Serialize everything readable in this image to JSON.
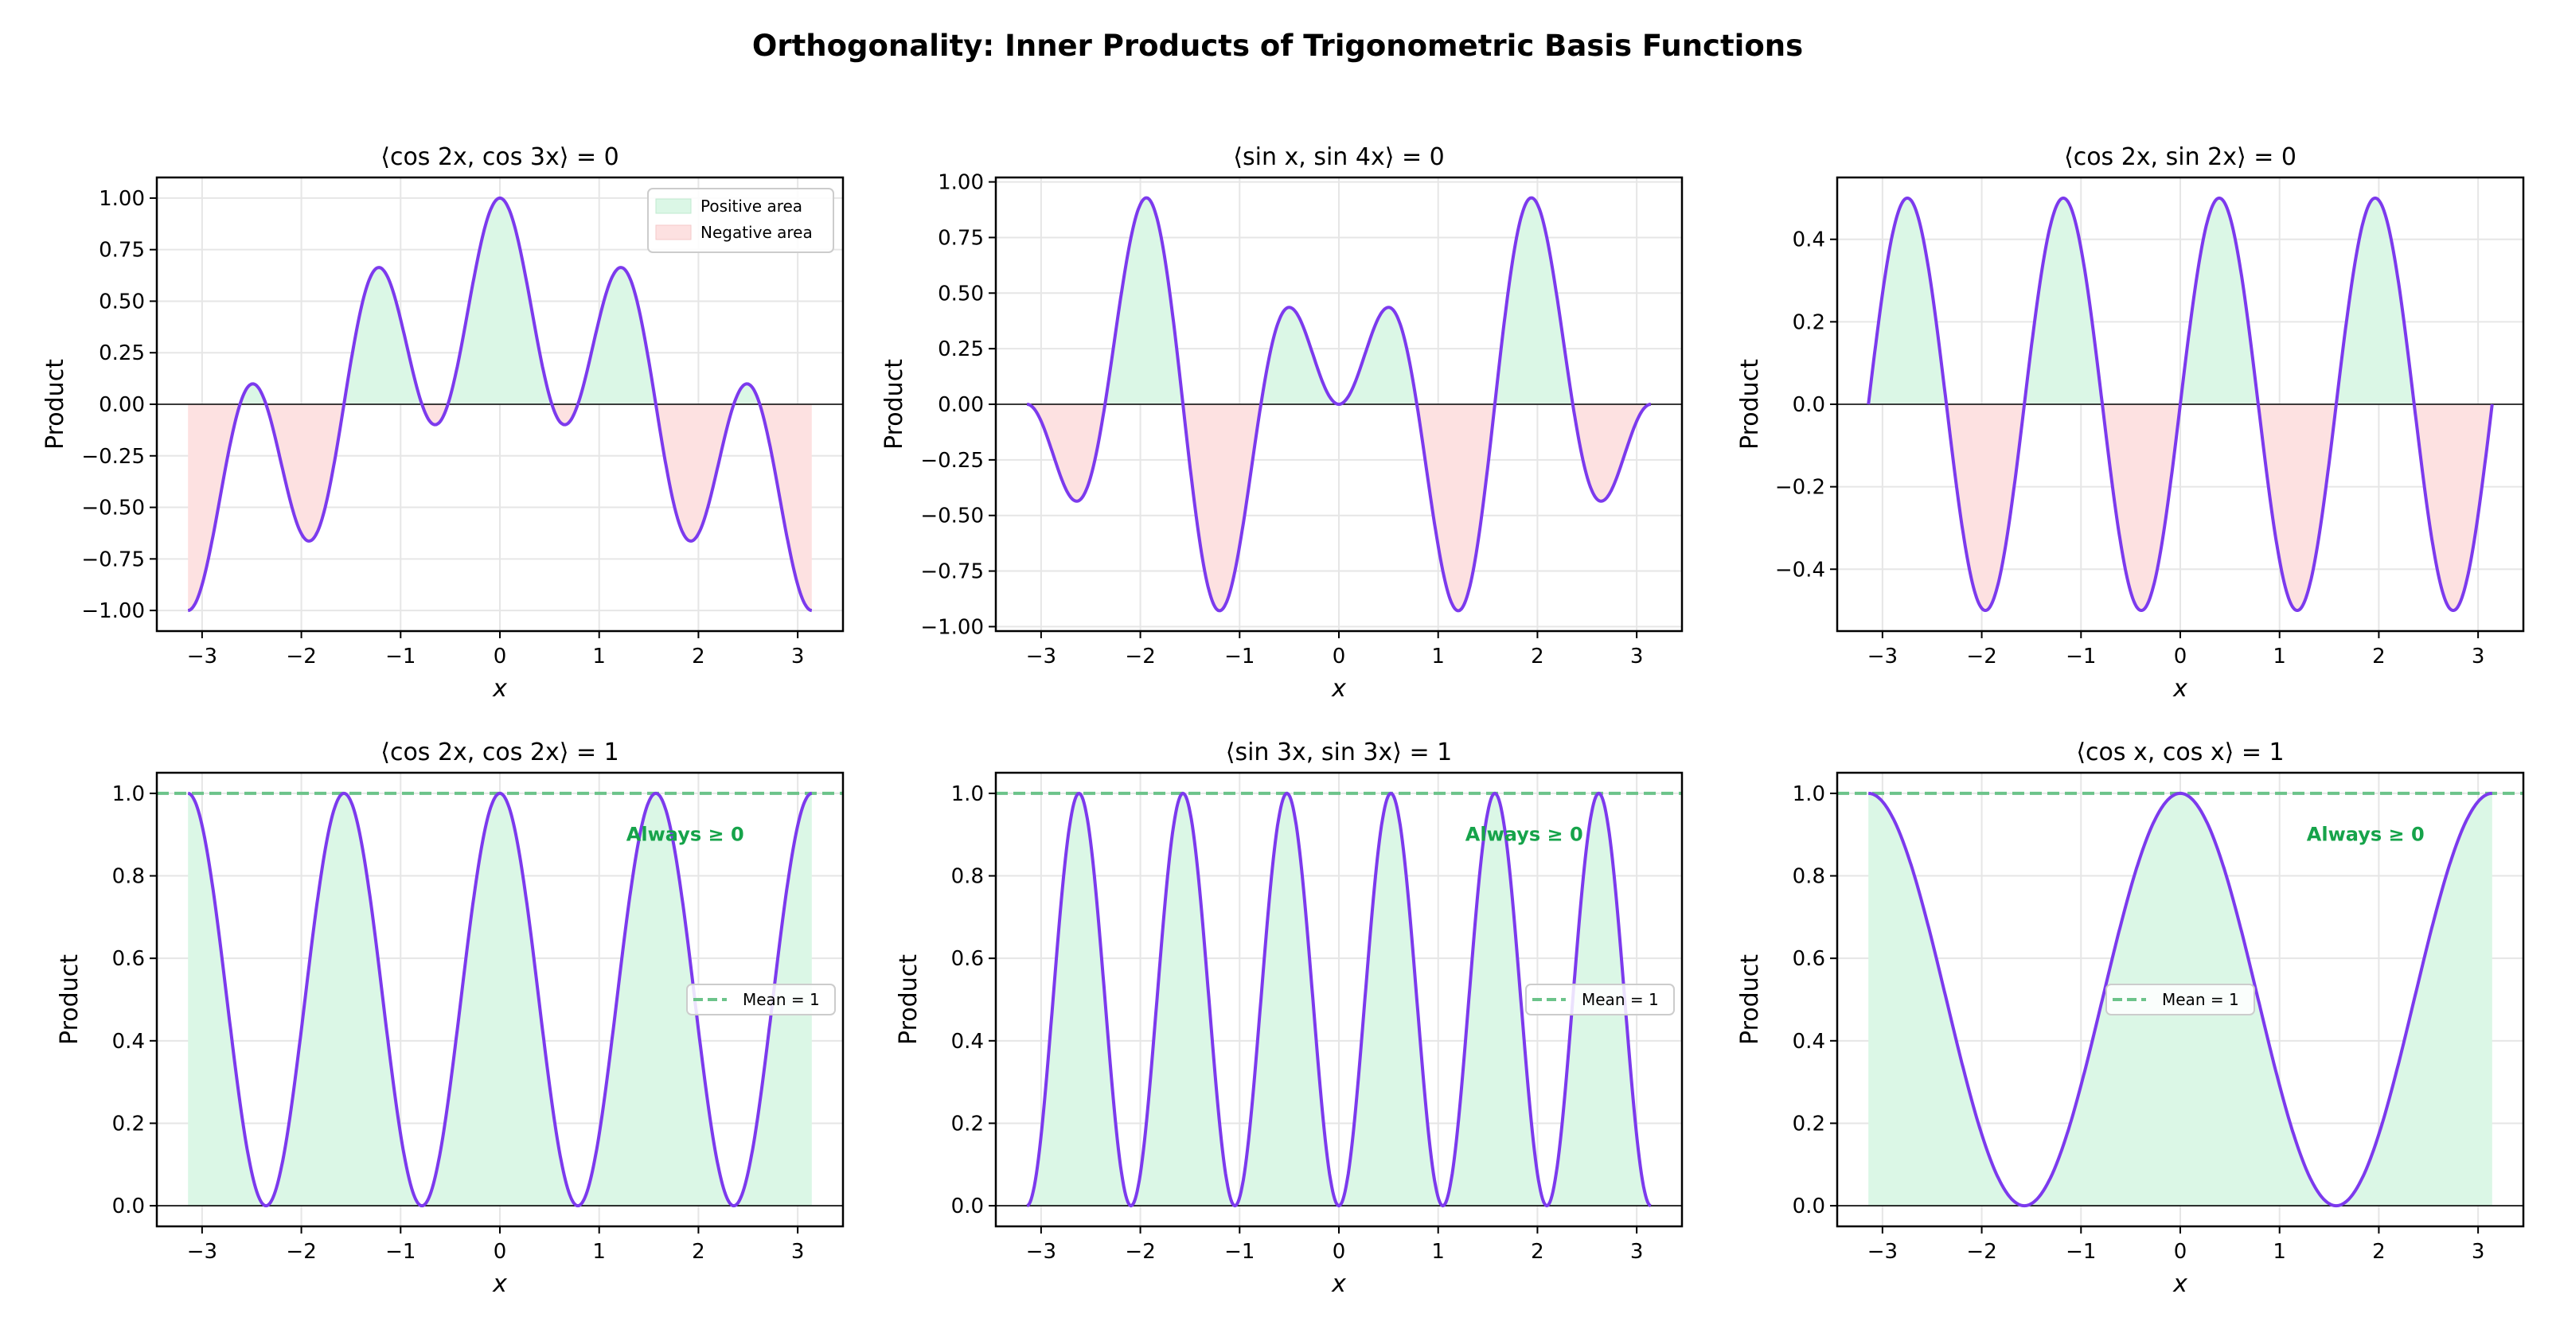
{
  "figure_title": "Orthogonality: Inner Products of Trigonometric Basis Functions",
  "chart_data": [
    {
      "type": "line",
      "title": "⟨cos 2x, cos 3x⟩ = 0",
      "factors": [
        "cos(2x)",
        "cos(3x)"
      ],
      "xlabel": "x",
      "ylabel": "Product",
      "xlim": [
        -3.456,
        3.456
      ],
      "ylim": [
        -1.1,
        1.1
      ],
      "x_range": [
        -3.1416,
        3.1416
      ],
      "xticks": [
        -3,
        -2,
        -1,
        0,
        1,
        2,
        3
      ],
      "yticks": [
        -1.0,
        -0.75,
        -0.5,
        -0.25,
        0,
        0.25,
        0.5,
        0.75,
        1.0
      ],
      "ytick_decimals": 2,
      "grid": true,
      "fill": "signed",
      "legend": {
        "placement": "upper right",
        "entries": [
          "Positive area",
          "Negative area"
        ]
      }
    },
    {
      "type": "line",
      "title": "⟨sin x, sin 4x⟩ = 0",
      "factors": [
        "sin(x)",
        "sin(4x)"
      ],
      "xlabel": "x",
      "ylabel": "Product",
      "xlim": [
        -3.456,
        3.456
      ],
      "ylim": [
        -1.02,
        1.02
      ],
      "x_range": [
        -3.1416,
        3.1416
      ],
      "xticks": [
        -3,
        -2,
        -1,
        0,
        1,
        2,
        3
      ],
      "yticks": [
        -1.0,
        -0.75,
        -0.5,
        -0.25,
        0,
        0.25,
        0.5,
        0.75,
        1.0
      ],
      "ytick_decimals": 2,
      "grid": true,
      "fill": "signed"
    },
    {
      "type": "line",
      "title": "⟨cos 2x, sin 2x⟩ = 0",
      "factors": [
        "cos(2x)",
        "sin(2x)"
      ],
      "xlabel": "x",
      "ylabel": "Product",
      "xlim": [
        -3.456,
        3.456
      ],
      "ylim": [
        -0.55,
        0.55
      ],
      "x_range": [
        -3.1416,
        3.1416
      ],
      "xticks": [
        -3,
        -2,
        -1,
        0,
        1,
        2,
        3
      ],
      "yticks": [
        -0.4,
        -0.2,
        0,
        0.2,
        0.4
      ],
      "ytick_decimals": 1,
      "grid": true,
      "fill": "signed"
    },
    {
      "type": "line",
      "title": "⟨cos 2x, cos 2x⟩ = 1",
      "factors": [
        "cos(2x)",
        "cos(2x)"
      ],
      "xlabel": "x",
      "ylabel": "Product",
      "xlim": [
        -3.456,
        3.456
      ],
      "ylim": [
        -0.05,
        1.05
      ],
      "x_range": [
        -3.1416,
        3.1416
      ],
      "xticks": [
        -3,
        -2,
        -1,
        0,
        1,
        2,
        3
      ],
      "yticks": [
        0,
        0.2,
        0.4,
        0.6,
        0.8,
        1.0
      ],
      "ytick_decimals": 1,
      "grid": true,
      "fill": "positive",
      "mean_line": 1,
      "annotation": "Always ≥ 0",
      "legend": {
        "placement": "center right",
        "entries": [
          "Mean = 1"
        ]
      }
    },
    {
      "type": "line",
      "title": "⟨sin 3x, sin 3x⟩ = 1",
      "factors": [
        "sin(3x)",
        "sin(3x)"
      ],
      "xlabel": "x",
      "ylabel": "Product",
      "xlim": [
        -3.456,
        3.456
      ],
      "ylim": [
        -0.05,
        1.05
      ],
      "x_range": [
        -3.1416,
        3.1416
      ],
      "xticks": [
        -3,
        -2,
        -1,
        0,
        1,
        2,
        3
      ],
      "yticks": [
        0,
        0.2,
        0.4,
        0.6,
        0.8,
        1.0
      ],
      "ytick_decimals": 1,
      "grid": true,
      "fill": "positive",
      "mean_line": 1,
      "annotation": "Always ≥ 0",
      "legend": {
        "placement": "center right",
        "entries": [
          "Mean = 1"
        ]
      }
    },
    {
      "type": "line",
      "title": "⟨cos x, cos x⟩ = 1",
      "factors": [
        "cos(x)",
        "cos(x)"
      ],
      "xlabel": "x",
      "ylabel": "Product",
      "xlim": [
        -3.456,
        3.456
      ],
      "ylim": [
        -0.05,
        1.05
      ],
      "x_range": [
        -3.1416,
        3.1416
      ],
      "xticks": [
        -3,
        -2,
        -1,
        0,
        1,
        2,
        3
      ],
      "yticks": [
        0,
        0.2,
        0.4,
        0.6,
        0.8,
        1.0
      ],
      "ytick_decimals": 1,
      "grid": true,
      "fill": "positive",
      "mean_line": 1,
      "annotation": "Always ≥ 0",
      "legend": {
        "placement": "center",
        "entries": [
          "Mean = 1"
        ]
      }
    }
  ],
  "colors": {
    "curve": "#7c3aed",
    "positive_fill": "#dbf7e6",
    "negative_fill": "#fde1e1",
    "mean_line": "#6cc38a",
    "annotation": "#16a34a",
    "grid": "#e6e6e6"
  }
}
